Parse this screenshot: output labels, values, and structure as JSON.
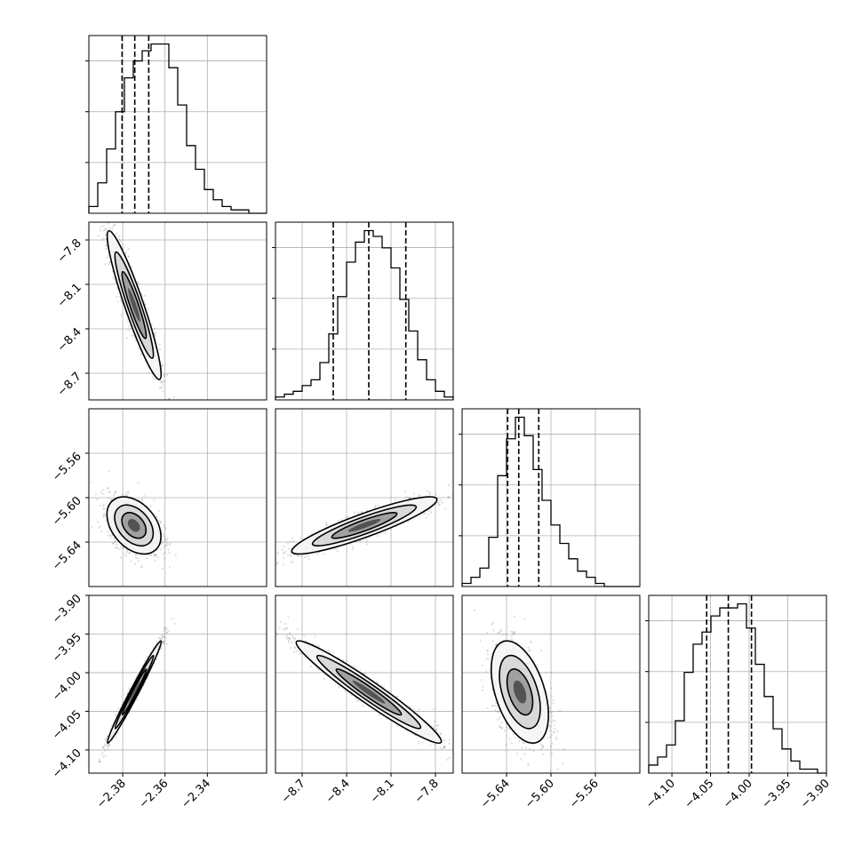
{
  "chart_data": {
    "type": "corner",
    "grid": true,
    "parameters": 4,
    "axes": [
      {
        "range": [
          -2.396,
          -2.312
        ],
        "ticks": [
          -2.38,
          -2.36,
          -2.34
        ],
        "tick_labels": [
          "−2.38",
          "−2.36",
          "−2.34"
        ]
      },
      {
        "range": [
          -8.88,
          -7.68
        ],
        "ticks": [
          -8.7,
          -8.4,
          -8.1,
          -7.8
        ],
        "tick_labels": [
          "−8.7",
          "−8.4",
          "−8.1",
          "−7.8"
        ]
      },
      {
        "range": [
          -5.68,
          -5.52
        ],
        "ticks": [
          -5.64,
          -5.6,
          -5.56
        ],
        "tick_labels": [
          "−5.64",
          "−5.60",
          "−5.56"
        ]
      },
      {
        "range": [
          -4.13,
          -3.9
        ],
        "ticks": [
          -4.1,
          -4.05,
          -4.0,
          -3.95,
          -3.9
        ],
        "tick_labels": [
          "−4.10",
          "−4.05",
          "−4.00",
          "−3.95",
          "−3.90"
        ]
      }
    ],
    "histograms": [
      {
        "param": 0,
        "counts": [
          2,
          9,
          19,
          30,
          40,
          45,
          48,
          50,
          50,
          43,
          32,
          20,
          13,
          7,
          4,
          2,
          1,
          1,
          0,
          0
        ],
        "quantiles": [
          -2.3803,
          -2.3743,
          -2.3677
        ]
      },
      {
        "param": 1,
        "counts": [
          1,
          2,
          3,
          5,
          7,
          13,
          23,
          36,
          48,
          55,
          59,
          57,
          53,
          46,
          35,
          24,
          14,
          7,
          3,
          1
        ],
        "quantiles": [
          -8.49,
          -8.25,
          -8.0
        ]
      },
      {
        "param": 2,
        "counts": [
          1,
          3,
          6,
          16,
          36,
          48,
          55,
          49,
          38,
          28,
          20,
          14,
          9,
          5,
          3,
          1,
          0,
          0,
          0,
          0
        ],
        "quantiles": [
          -5.639,
          -5.629,
          -5.611
        ]
      },
      {
        "param": 3,
        "counts": [
          2,
          4,
          7,
          13,
          25,
          32,
          35,
          39,
          41,
          41,
          42,
          36,
          27,
          19,
          11,
          6,
          3,
          1,
          1,
          0
        ],
        "quantiles": [
          -4.055,
          -4.027,
          -3.997
        ]
      }
    ],
    "pairs": [
      {
        "x": 0,
        "y": 1,
        "center": [
          -2.3746,
          -8.24
        ],
        "sigma": [
          0.0052,
          0.205
        ],
        "rho": -0.93
      },
      {
        "x": 0,
        "y": 2,
        "center": [
          -2.3747,
          -5.625
        ],
        "sigma": [
          0.0052,
          0.0105
        ],
        "rho": -0.38
      },
      {
        "x": 0,
        "y": 3,
        "center": [
          -2.3745,
          -4.025
        ],
        "sigma": [
          0.0052,
          0.027
        ],
        "rho": 0.985
      },
      {
        "x": 1,
        "y": 2,
        "center": [
          -8.28,
          -5.625
        ],
        "sigma": [
          0.2,
          0.0105
        ],
        "rho": 0.9
      },
      {
        "x": 1,
        "y": 3,
        "center": [
          -8.25,
          -4.025
        ],
        "sigma": [
          0.2,
          0.027
        ],
        "rho": -0.965
      },
      {
        "x": 2,
        "y": 3,
        "center": [
          -5.628,
          -4.025
        ],
        "sigma": [
          0.0105,
          0.027
        ],
        "rho": -0.45
      }
    ]
  }
}
